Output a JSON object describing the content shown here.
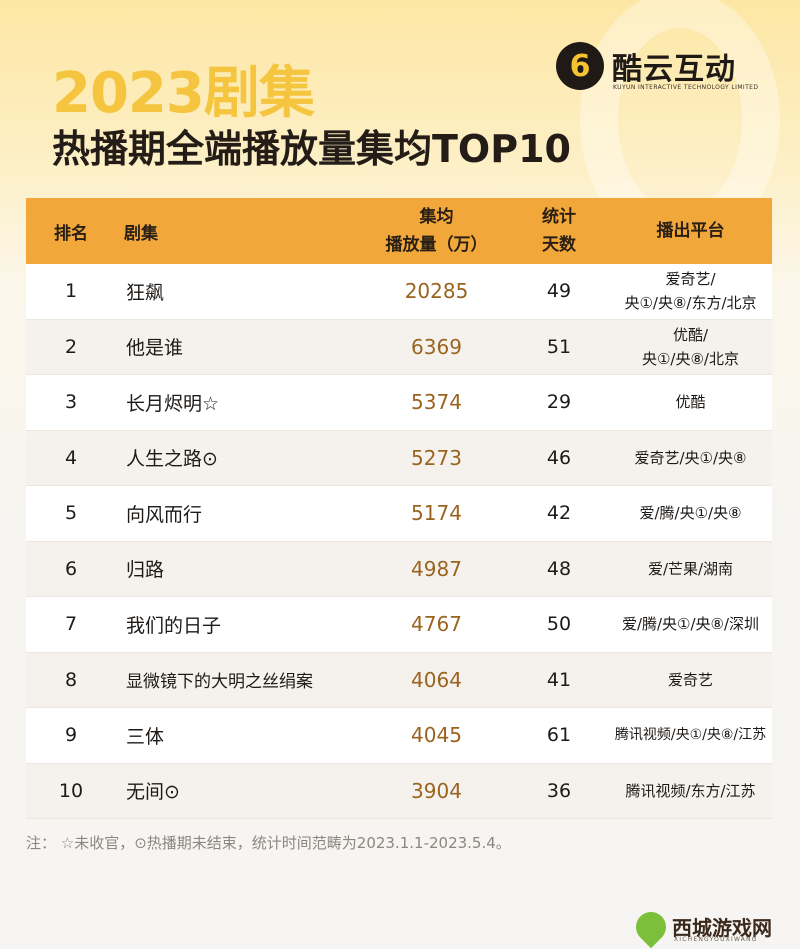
{
  "header": {
    "year_title": "2023剧集",
    "subtitle": "热播期全端播放量集均TOP10"
  },
  "logo": {
    "mark": "6",
    "name": "酷云互动",
    "english": "KUYUN INTERACTIVE TECHNOLOGY LIMITED"
  },
  "table": {
    "columns": {
      "rank": "排名",
      "name": "剧集",
      "views_line1": "集均",
      "views_line2": "播放量（万）",
      "days_line1": "统计",
      "days_line2": "天数",
      "platform": "播出平台"
    },
    "rows": [
      {
        "rank": "1",
        "name": "狂飙",
        "views": "20285",
        "days": "49",
        "platform_line1": "爱奇艺/",
        "platform_line2": "央①/央⑧/东方/北京"
      },
      {
        "rank": "2",
        "name": "他是谁",
        "views": "6369",
        "days": "51",
        "platform_line1": "优酷/",
        "platform_line2": "央①/央⑧/北京"
      },
      {
        "rank": "3",
        "name": "长月烬明☆",
        "views": "5374",
        "days": "29",
        "platform_line1": "优酷",
        "platform_line2": ""
      },
      {
        "rank": "4",
        "name": "人生之路⊙",
        "views": "5273",
        "days": "46",
        "platform_line1": "爱奇艺/央①/央⑧",
        "platform_line2": ""
      },
      {
        "rank": "5",
        "name": "向风而行",
        "views": "5174",
        "days": "42",
        "platform_line1": "爱/腾/央①/央⑧",
        "platform_line2": ""
      },
      {
        "rank": "6",
        "name": "归路",
        "views": "4987",
        "days": "48",
        "platform_line1": "爱/芒果/湖南",
        "platform_line2": ""
      },
      {
        "rank": "7",
        "name": "我们的日子",
        "views": "4767",
        "days": "50",
        "platform_line1": "爱/腾/央①/央⑧/深圳",
        "platform_line2": ""
      },
      {
        "rank": "8",
        "name": "显微镜下的大明之丝绢案",
        "views": "4064",
        "days": "41",
        "platform_line1": "爱奇艺",
        "platform_line2": ""
      },
      {
        "rank": "9",
        "name": "三体",
        "views": "4045",
        "days": "61",
        "platform_line1": "腾讯视频/央①/央⑧/江苏",
        "platform_line2": ""
      },
      {
        "rank": "10",
        "name": "无间⊙",
        "views": "3904",
        "days": "36",
        "platform_line1": "腾讯视频/东方/江苏",
        "platform_line2": ""
      }
    ]
  },
  "footnote": "注： ☆未收官，⊙热播期未结束，统计时间范畴为2023.1.1-2023.5.4。",
  "watermark": {
    "name": "西城游戏网",
    "sub": "XICHENGYOUXIWANG"
  },
  "colors": {
    "header_bar": "#f1a73a",
    "year_title": "#f5c540",
    "views_text": "#9a6420"
  }
}
